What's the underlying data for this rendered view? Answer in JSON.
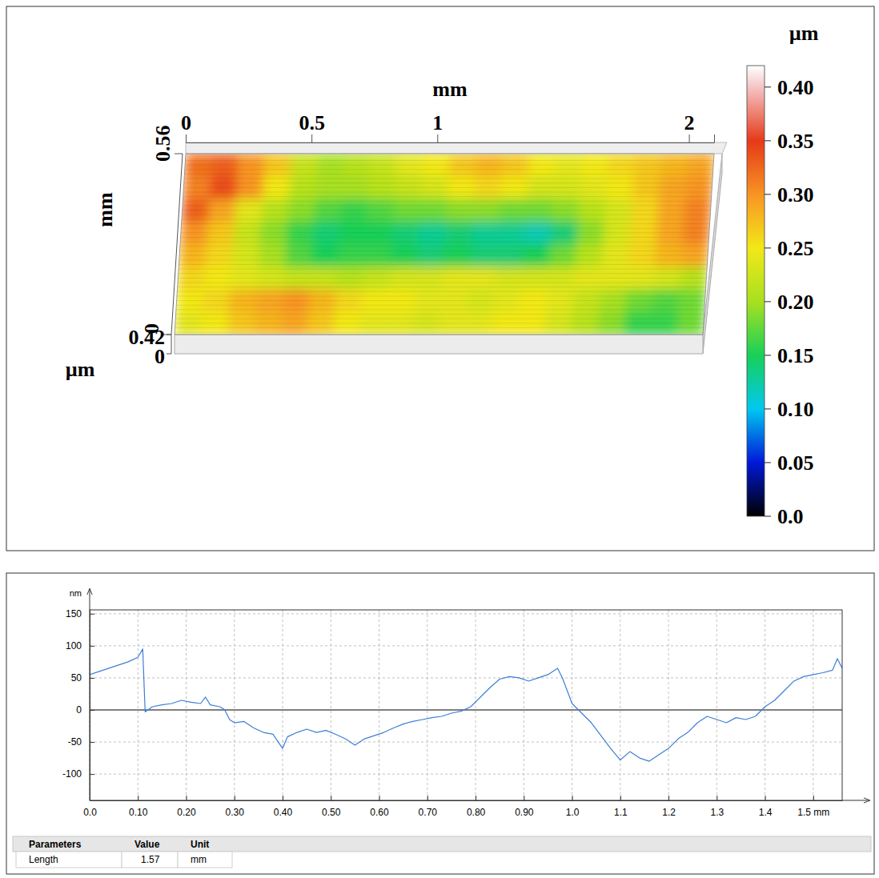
{
  "chart_data": [
    {
      "type": "heatmap",
      "x_label": "mm",
      "y_label": "mm",
      "z_label": "µm",
      "xlim": [
        0,
        2.1
      ],
      "xticks": [
        0,
        0.5,
        1,
        2
      ],
      "ylim": [
        0,
        0.56
      ],
      "yticks": [
        0,
        0.56
      ],
      "zlim": [
        0,
        0.42
      ],
      "zticks": [
        0,
        0.42
      ],
      "x": [
        0.0525,
        0.1575,
        0.2625,
        0.3675,
        0.4725,
        0.5775,
        0.6825,
        0.7875,
        0.8925,
        0.9975,
        1.1025,
        1.2075,
        1.3125,
        1.4175,
        1.5225,
        1.6275,
        1.7325,
        1.8375,
        1.9425,
        2.0475
      ],
      "y": [
        0.525,
        0.455,
        0.385,
        0.315,
        0.245,
        0.175,
        0.105,
        0.035
      ],
      "values": [
        [
          0.32,
          0.33,
          0.3,
          0.27,
          0.22,
          0.2,
          0.21,
          0.22,
          0.24,
          0.25,
          0.27,
          0.28,
          0.27,
          0.25,
          0.24,
          0.25,
          0.26,
          0.27,
          0.28,
          0.29
        ],
        [
          0.31,
          0.34,
          0.3,
          0.25,
          0.21,
          0.2,
          0.2,
          0.21,
          0.22,
          0.23,
          0.25,
          0.26,
          0.25,
          0.23,
          0.23,
          0.24,
          0.25,
          0.27,
          0.29,
          0.3
        ],
        [
          0.33,
          0.29,
          0.24,
          0.21,
          0.19,
          0.17,
          0.16,
          0.17,
          0.18,
          0.18,
          0.19,
          0.19,
          0.18,
          0.18,
          0.19,
          0.21,
          0.23,
          0.26,
          0.29,
          0.31
        ],
        [
          0.3,
          0.27,
          0.22,
          0.19,
          0.16,
          0.14,
          0.15,
          0.15,
          0.14,
          0.13,
          0.14,
          0.13,
          0.13,
          0.12,
          0.14,
          0.19,
          0.23,
          0.26,
          0.29,
          0.31
        ],
        [
          0.28,
          0.26,
          0.23,
          0.2,
          0.17,
          0.15,
          0.16,
          0.16,
          0.15,
          0.14,
          0.15,
          0.14,
          0.14,
          0.15,
          0.18,
          0.21,
          0.24,
          0.26,
          0.28,
          0.29
        ],
        [
          0.26,
          0.25,
          0.24,
          0.23,
          0.22,
          0.22,
          0.21,
          0.22,
          0.23,
          0.23,
          0.24,
          0.24,
          0.23,
          0.23,
          0.23,
          0.24,
          0.24,
          0.24,
          0.23,
          0.21
        ],
        [
          0.25,
          0.26,
          0.28,
          0.29,
          0.3,
          0.28,
          0.26,
          0.25,
          0.25,
          0.24,
          0.24,
          0.23,
          0.24,
          0.25,
          0.24,
          0.22,
          0.2,
          0.18,
          0.17,
          0.18
        ],
        [
          0.24,
          0.25,
          0.27,
          0.28,
          0.29,
          0.27,
          0.25,
          0.24,
          0.24,
          0.23,
          0.24,
          0.24,
          0.25,
          0.25,
          0.23,
          0.21,
          0.19,
          0.16,
          0.16,
          0.18
        ]
      ],
      "colorbar": {
        "title": "µm",
        "range": [
          0,
          0.42
        ],
        "ticks": [
          {
            "value": 0,
            "label": "0.0"
          },
          0.05,
          {
            "value": 0.1,
            "label": "0.10"
          },
          0.15,
          {
            "value": 0.2,
            "label": "0.20"
          },
          0.25,
          {
            "value": 0.3,
            "label": "0.30"
          },
          0.35,
          {
            "value": 0.4,
            "label": "0.40"
          }
        ]
      }
    },
    {
      "type": "line",
      "y_label": "nm",
      "color": "#3d7fd6",
      "grid": true,
      "xlim": [
        0,
        1.56
      ],
      "xticks": [
        {
          "value": 0,
          "label": "0.0"
        },
        {
          "value": 0.1,
          "label": "0.10"
        },
        {
          "value": 0.2,
          "label": "0.20"
        },
        {
          "value": 0.3,
          "label": "0.30"
        },
        {
          "value": 0.4,
          "label": "0.40"
        },
        {
          "value": 0.5,
          "label": "0.50"
        },
        {
          "value": 0.6,
          "label": "0.60"
        },
        {
          "value": 0.7,
          "label": "0.70"
        },
        {
          "value": 0.8,
          "label": "0.80"
        },
        {
          "value": 0.9,
          "label": "0.90"
        },
        {
          "value": 1,
          "label": "1.0"
        },
        1.1,
        1.2,
        1.3,
        1.4,
        {
          "value": 1.5,
          "label": "1.5 mm"
        }
      ],
      "ylim": [
        -141,
        156
      ],
      "yticks": [
        -100,
        -50,
        0,
        50,
        100,
        150
      ],
      "x": [
        0,
        0.02,
        0.04,
        0.06,
        0.08,
        0.1,
        0.11,
        0.115,
        0.13,
        0.15,
        0.17,
        0.19,
        0.21,
        0.23,
        0.24,
        0.25,
        0.27,
        0.28,
        0.29,
        0.3,
        0.32,
        0.34,
        0.36,
        0.38,
        0.4,
        0.41,
        0.43,
        0.45,
        0.47,
        0.49,
        0.51,
        0.53,
        0.55,
        0.57,
        0.59,
        0.61,
        0.63,
        0.65,
        0.67,
        0.69,
        0.71,
        0.73,
        0.75,
        0.77,
        0.79,
        0.81,
        0.83,
        0.85,
        0.87,
        0.89,
        0.91,
        0.93,
        0.95,
        0.97,
        0.98,
        1,
        1.02,
        1.04,
        1.06,
        1.08,
        1.1,
        1.12,
        1.14,
        1.16,
        1.18,
        1.2,
        1.22,
        1.24,
        1.26,
        1.28,
        1.3,
        1.32,
        1.34,
        1.36,
        1.38,
        1.4,
        1.42,
        1.44,
        1.46,
        1.48,
        1.5,
        1.52,
        1.54,
        1.55,
        1.56
      ],
      "values": [
        55,
        60,
        65,
        70,
        75,
        82,
        95,
        -3,
        5,
        8,
        10,
        15,
        12,
        10,
        20,
        8,
        5,
        0,
        -15,
        -20,
        -18,
        -28,
        -35,
        -38,
        -60,
        -42,
        -35,
        -30,
        -35,
        -32,
        -38,
        -45,
        -55,
        -45,
        -40,
        -35,
        -28,
        -22,
        -18,
        -15,
        -12,
        -10,
        -5,
        -2,
        5,
        20,
        35,
        48,
        52,
        50,
        45,
        50,
        55,
        65,
        50,
        10,
        -5,
        -20,
        -40,
        -60,
        -78,
        -65,
        -75,
        -80,
        -70,
        -60,
        -45,
        -35,
        -20,
        -10,
        -15,
        -20,
        -12,
        -15,
        -10,
        5,
        15,
        30,
        45,
        52,
        55,
        58,
        62,
        80,
        65
      ]
    }
  ],
  "table": {
    "columns": [
      "Parameters",
      "Value",
      "Unit"
    ],
    "rows": [
      [
        "Length",
        1.57,
        "mm"
      ]
    ]
  }
}
